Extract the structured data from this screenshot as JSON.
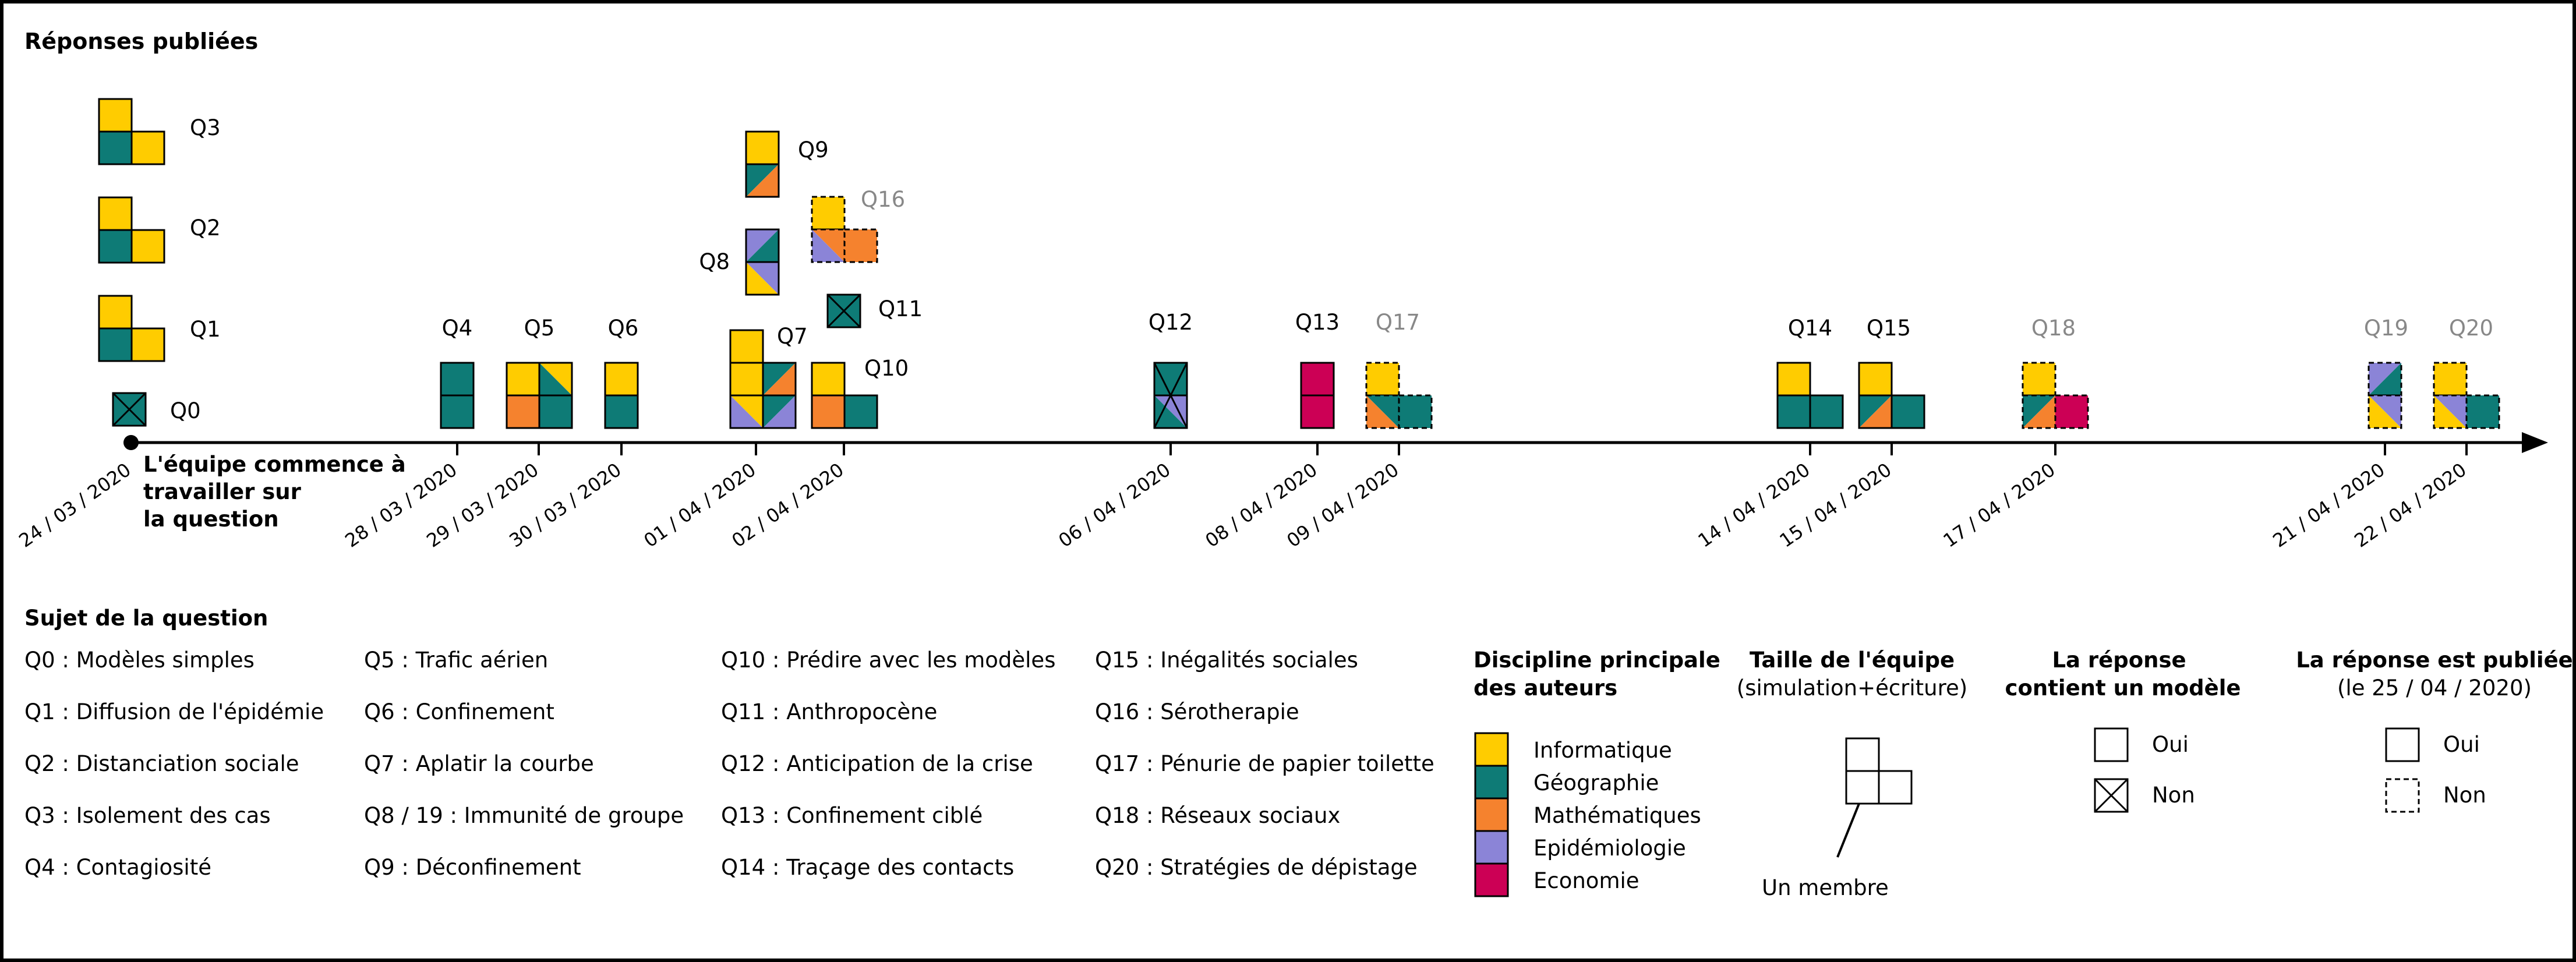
{
  "colors": {
    "informatique": "#FFCC00",
    "geographie": "#0E7B76",
    "mathematiques": "#F5822E",
    "epidemiologie": "#8B84D7",
    "economie": "#CC0055",
    "stroke": "#000000",
    "faded_label": "#888888"
  },
  "header": {
    "title": "Réponses publiées"
  },
  "timeline": {
    "start_note": "L'équipe commence à travailler sur la question",
    "dates": [
      "24 / 03 / 2020",
      "28 / 03 / 2020",
      "29 / 03 / 2020",
      "30 / 03 / 2020",
      "01 / 04 / 2020",
      "02 / 04 / 2020",
      "06 / 04 / 2020",
      "08 / 04 / 2020",
      "09 / 04 / 2020",
      "14 / 04 / 2020",
      "15 / 04 / 2020",
      "17 / 04 / 2020",
      "21 / 04 / 2020",
      "22 / 04 / 2020"
    ]
  },
  "questions": [
    {
      "id": "Q0",
      "label": "Q0",
      "published": true
    },
    {
      "id": "Q1",
      "label": "Q1",
      "published": true
    },
    {
      "id": "Q2",
      "label": "Q2",
      "published": true
    },
    {
      "id": "Q3",
      "label": "Q3",
      "published": true
    },
    {
      "id": "Q4",
      "label": "Q4",
      "published": true
    },
    {
      "id": "Q5",
      "label": "Q5",
      "published": true
    },
    {
      "id": "Q6",
      "label": "Q6",
      "published": true
    },
    {
      "id": "Q7",
      "label": "Q7",
      "published": true
    },
    {
      "id": "Q8",
      "label": "Q8",
      "published": true
    },
    {
      "id": "Q9",
      "label": "Q9",
      "published": true
    },
    {
      "id": "Q10",
      "label": "Q10",
      "published": true
    },
    {
      "id": "Q11",
      "label": "Q11",
      "published": true
    },
    {
      "id": "Q12",
      "label": "Q12",
      "published": true
    },
    {
      "id": "Q13",
      "label": "Q13",
      "published": true
    },
    {
      "id": "Q14",
      "label": "Q14",
      "published": true
    },
    {
      "id": "Q15",
      "label": "Q15",
      "published": true
    },
    {
      "id": "Q16",
      "label": "Q16",
      "published": false
    },
    {
      "id": "Q17",
      "label": "Q17",
      "published": false
    },
    {
      "id": "Q18",
      "label": "Q18",
      "published": false
    },
    {
      "id": "Q19",
      "label": "Q19",
      "published": false
    },
    {
      "id": "Q20",
      "label": "Q20",
      "published": false
    }
  ],
  "subjects_title": "Sujet de la question",
  "subjects": [
    [
      "Q0 : Modèles simples",
      "Q1 : Diffusion de l'épidémie",
      "Q2 : Distanciation sociale",
      "Q3 : Isolement des cas",
      "Q4 : Contagiosité"
    ],
    [
      "Q5 : Trafic aérien",
      "Q6 : Confinement",
      "Q7 : Aplatir la courbe",
      "Q8 / 19 : Immunité de groupe",
      "Q9 : Déconfinement"
    ],
    [
      "Q10 : Prédire avec les modèles",
      "Q11 : Anthropocène",
      "Q12 : Anticipation de la crise",
      "Q13 : Confinement ciblé",
      "Q14 : Traçage des contacts"
    ],
    [
      "Q15 : Inégalités sociales",
      "Q16 : Sérotherapie",
      "Q17 : Pénurie de papier toilette",
      "Q18 : Réseaux sociaux",
      "Q20 : Stratégies de dépistage"
    ]
  ],
  "legend": {
    "discipline_title": [
      "Discipline principale",
      "des auteurs"
    ],
    "disciplines": [
      "Informatique",
      "Géographie",
      "Mathématiques",
      "Epidémiologie",
      "Economie"
    ],
    "team_title": "Taille de l'équipe",
    "team_subtitle": "(simulation+écriture)",
    "team_member": "Un membre",
    "model_title": [
      "La réponse",
      "contient un modèle"
    ],
    "model_yes": "Oui",
    "model_no": "Non",
    "published_title": "La réponse est publiée",
    "published_subtitle": "(le 25 / 04 / 2020)",
    "published_yes": "Oui",
    "published_no": "Non"
  }
}
